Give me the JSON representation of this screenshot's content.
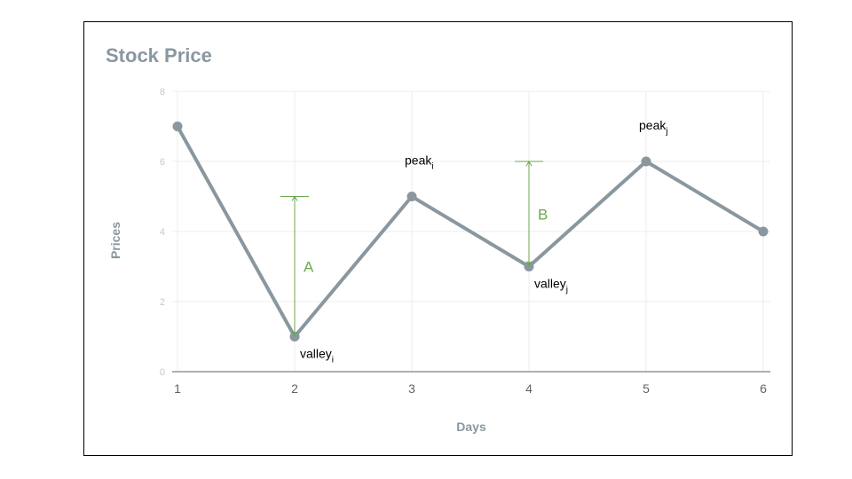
{
  "chart_data": {
    "type": "line",
    "title": "Stock Price",
    "xlabel": "Days",
    "ylabel": "Prices",
    "x": [
      1,
      2,
      3,
      4,
      5,
      6
    ],
    "y": [
      7,
      1,
      5,
      3,
      6,
      4
    ],
    "xlim": [
      1,
      6
    ],
    "ylim": [
      0,
      8
    ],
    "yticks": [
      0,
      2,
      4,
      6,
      8
    ],
    "grid": true,
    "series_color": "#8a979f",
    "annotation_color": "#6aa84f",
    "point_labels": [
      {
        "x": 2,
        "y": 1,
        "text": "valley",
        "sub": "i"
      },
      {
        "x": 3,
        "y": 5,
        "text": "peak",
        "sub": "i"
      },
      {
        "x": 4,
        "y": 3,
        "text": "valley",
        "sub": "j"
      },
      {
        "x": 5,
        "y": 6,
        "text": "peak",
        "sub": "j"
      }
    ],
    "spans": [
      {
        "x": 2,
        "from": 1,
        "to": 5,
        "label": "A"
      },
      {
        "x": 4,
        "from": 3,
        "to": 6,
        "label": "B"
      }
    ]
  }
}
